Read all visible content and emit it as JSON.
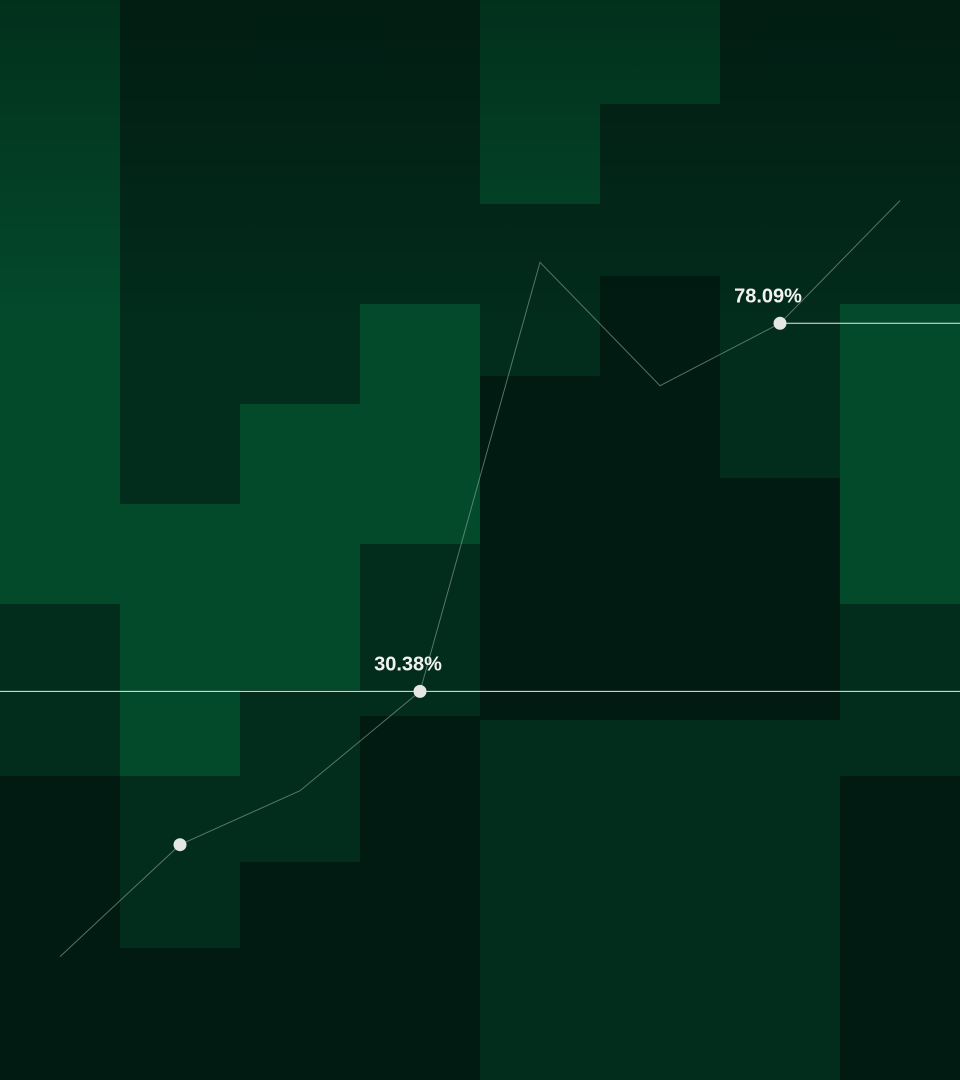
{
  "chart_data": {
    "type": "line",
    "x": [
      1,
      2,
      3,
      4,
      5,
      6,
      7,
      8
    ],
    "series": [
      {
        "values": [
          -4.0,
          10.5,
          17.5,
          30.38,
          86.0,
          70.0,
          78.09,
          94.0
        ]
      }
    ],
    "labels": [
      {
        "text": "30.38%",
        "x": 4,
        "value": 30.38
      },
      {
        "text": "78.09%",
        "x": 7,
        "value": 78.09
      }
    ],
    "highlighted_points": [
      2,
      4,
      7
    ],
    "ylim": [
      -20,
      120
    ],
    "grid": false,
    "legend": "none"
  },
  "colors": {
    "background": "#011d12",
    "band_light": "#034a2b",
    "band_mid": "#022c1c",
    "band_dark": "#011b12",
    "line": "#9fb5a8",
    "marker": "#e6e6e6",
    "guide": "#ffffff",
    "label": "#f2f2f2"
  }
}
